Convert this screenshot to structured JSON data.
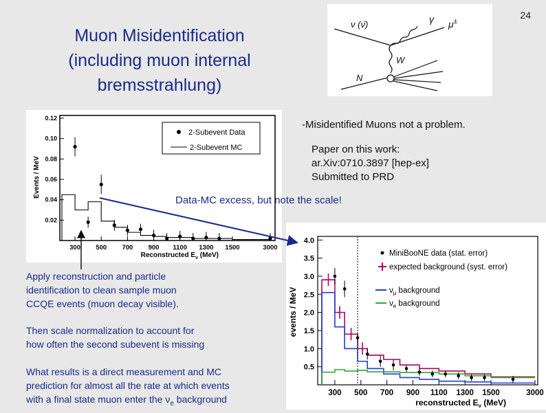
{
  "slide": {
    "number": "24",
    "title_lines": [
      "Muon Misidentification",
      "(including muon internal",
      "bremsstrahlung)"
    ],
    "notes": {
      "misid": "-Misidentified Muons not a problem.",
      "paper_lines": [
        "Paper on this work:",
        "ar.Xiv:0710.3897  [hep-ex]",
        "Submitted to PRD"
      ],
      "excess": "Data-MC excess, but note the scale!"
    },
    "description": {
      "p1": [
        "Apply reconstruction and particle",
        "identification to clean sample muon",
        "CCQE events (muon decay visible)."
      ],
      "p2": [
        "Then scale normalization to account for",
        "how often the second subevent is missing"
      ],
      "p3": [
        "What results is a direct measurement and MC",
        "prediction for almost all the rate at which events"
      ],
      "p3_last_prefix": "with a final state muon enter the ",
      "p3_last_sym": "ν",
      "p3_last_sub": "e",
      "p3_last_suffix": " background"
    }
  },
  "feynman": {
    "nu_label": "ν (ν̄)",
    "gamma_label": "γ",
    "mu_label": "μ",
    "mu_sup": "±",
    "w_label": "W",
    "n_label": "N"
  },
  "chart_data": [
    {
      "type": "line",
      "title": "",
      "xlabel": "Reconstructed E",
      "xlabel_sub": "ν",
      "xlabel_unit": " (MeV)",
      "ylabel": "Events / MeV",
      "xticks": [
        "300",
        "500",
        "700",
        "900",
        "1100",
        "1300",
        "1500",
        "3000"
      ],
      "yticks": [
        "0.02",
        "0.04",
        "0.06",
        "0.08",
        "0.10",
        "0.12"
      ],
      "ylim": [
        0,
        0.12
      ],
      "legend_position": "top-right",
      "series": [
        {
          "name": "2-Subevent Data",
          "x": [
            300,
            400,
            500,
            600,
            700,
            800,
            900,
            1000,
            1100,
            1200,
            1300,
            1400,
            3000
          ],
          "y": [
            0.092,
            0.018,
            0.055,
            0.015,
            0.01,
            0.011,
            0.005,
            0.002,
            0.004,
            0.002,
            0.003,
            0.002,
            0.002
          ]
        },
        {
          "name": "2-Subevent MC",
          "bin_edges": [
            200,
            300,
            400,
            500,
            600,
            700,
            800,
            900,
            1000,
            1100,
            1200,
            1300,
            1400,
            1500,
            3000
          ],
          "values": [
            0.045,
            0.03,
            0.038,
            0.019,
            0.013,
            0.008,
            0.005,
            0.004,
            0.003,
            0.003,
            0.002,
            0.002,
            0.002,
            0.001
          ]
        }
      ]
    },
    {
      "type": "line",
      "title": "",
      "xlabel": "reconstructed  E",
      "xlabel_sub": "ν",
      "xlabel_unit": "  (MeV)",
      "ylabel": "events / MeV",
      "xticks": [
        "300",
        "500",
        "700",
        "900",
        "1100",
        "1300",
        "1500",
        "3000"
      ],
      "yticks": [
        "0.5",
        "1.0",
        "1.5",
        "2.0",
        "2.5",
        "3.0",
        "3.5",
        "4.0"
      ],
      "ylim": [
        0,
        4.1
      ],
      "cut_line_x": 475,
      "legend_position": "top-right",
      "legend": {
        "data": "MiniBooNE data (stat. error)",
        "expected": "expected background (syst. error)",
        "numu_prefix": "ν",
        "numu_sub": "μ",
        "numu_suffix": " background",
        "nue_prefix": "ν",
        "nue_sub": "e",
        "nue_suffix": " background"
      },
      "colors": {
        "data": "#000000",
        "expected": "#b0005a",
        "numu": "#1f3fd6",
        "nue": "#2eaa2e"
      },
      "series": [
        {
          "name": "MiniBooNE data (stat. error)",
          "x": [
            300,
            375,
            475,
            550,
            650,
            750,
            850,
            950,
            1050,
            1150,
            1250,
            1350,
            1450,
            2250
          ],
          "y": [
            3.0,
            2.65,
            1.3,
            0.85,
            0.65,
            0.55,
            0.45,
            0.35,
            0.3,
            0.3,
            0.25,
            0.2,
            0.2,
            0.15
          ]
        },
        {
          "name": "expected background (syst. error)",
          "bin_edges": [
            200,
            300,
            375,
            475,
            550,
            675,
            800,
            950,
            1100,
            1300,
            1500,
            3000
          ],
          "values": [
            2.9,
            2.0,
            1.4,
            1.0,
            0.82,
            0.7,
            0.55,
            0.45,
            0.38,
            0.3,
            0.22
          ]
        },
        {
          "name": "numu background",
          "bin_edges": [
            200,
            300,
            375,
            475,
            550,
            675,
            800,
            950,
            1100,
            1300,
            1500,
            3000
          ],
          "values": [
            2.55,
            1.6,
            1.0,
            0.65,
            0.45,
            0.3,
            0.2,
            0.15,
            0.1,
            0.08,
            0.05
          ]
        },
        {
          "name": "nue background",
          "bin_edges": [
            200,
            300,
            375,
            475,
            550,
            675,
            800,
            950,
            1100,
            1300,
            1500,
            3000
          ],
          "values": [
            0.35,
            0.42,
            0.38,
            0.4,
            0.36,
            0.36,
            0.34,
            0.34,
            0.3,
            0.25,
            0.2
          ]
        }
      ]
    }
  ]
}
